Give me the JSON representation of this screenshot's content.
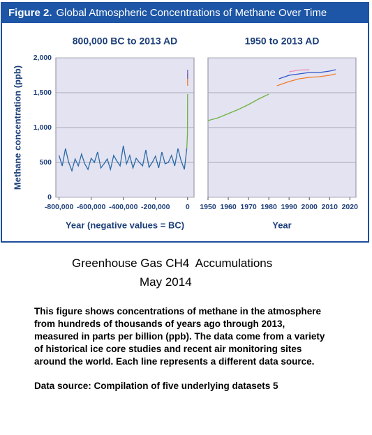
{
  "figure_label": "Figure 2.",
  "figure_title": "Global Atmospheric Concentrations of Methane Over Time",
  "chart_data": [
    {
      "type": "line",
      "title": "800,000 BC to 2013 AD",
      "y_label": "Methane concentration (ppb)",
      "x_label": "Year (negative values = BC)",
      "xlim": [
        -820000,
        40000
      ],
      "ylim": [
        0,
        2000
      ],
      "xticks": [
        {
          "value": -800000,
          "label": "-800,000"
        },
        {
          "value": -600000,
          "label": "-600,000"
        },
        {
          "value": -400000,
          "label": "-400,000"
        },
        {
          "value": -200000,
          "label": "-200,000"
        },
        0
      ],
      "yticks": [
        0,
        500,
        {
          "value": 1000,
          "label": "1,000"
        },
        {
          "value": 1500,
          "label": "1,500"
        },
        {
          "value": 2000,
          "label": "2,000"
        }
      ],
      "grid": true,
      "series": [
        {
          "color": "#2a6aa6",
          "x": [
            -800000,
            -780000,
            -760000,
            -740000,
            -720000,
            -700000,
            -680000,
            -660000,
            -640000,
            -620000,
            -600000,
            -580000,
            -560000,
            -540000,
            -520000,
            -500000,
            -480000,
            -460000,
            -440000,
            -420000,
            -400000,
            -380000,
            -360000,
            -340000,
            -320000,
            -300000,
            -280000,
            -260000,
            -240000,
            -220000,
            -200000,
            -180000,
            -160000,
            -140000,
            -120000,
            -100000,
            -80000,
            -60000,
            -40000,
            -20000,
            -5000
          ],
          "values": [
            600,
            450,
            700,
            500,
            380,
            550,
            450,
            620,
            480,
            400,
            560,
            500,
            650,
            420,
            480,
            550,
            400,
            600,
            520,
            450,
            740,
            480,
            600,
            420,
            560,
            500,
            450,
            680,
            430,
            500,
            590,
            420,
            650,
            480,
            500,
            600,
            450,
            700,
            520,
            400,
            700
          ]
        },
        {
          "color": "#6cb33e",
          "x": [
            -5000,
            -1000,
            0
          ],
          "values": [
            700,
            900,
            1480
          ]
        },
        {
          "color": "#f07c2a",
          "x": [
            0,
            0
          ],
          "values": [
            1600,
            1770
          ]
        },
        {
          "color": "#6a5fc1",
          "x": [
            0,
            0
          ],
          "values": [
            1700,
            1830
          ]
        }
      ]
    },
    {
      "type": "line",
      "title": "1950 to 2013 AD",
      "x_label": "Year",
      "xlim": [
        1950,
        2023
      ],
      "ylim": [
        0,
        2000
      ],
      "xticks": [
        1950,
        1960,
        1970,
        1980,
        1990,
        2000,
        2010,
        2020
      ],
      "yticks": [
        0,
        500,
        1000,
        1500,
        2000
      ],
      "grid": true,
      "series": [
        {
          "color": "#6cb33e",
          "x": [
            1950,
            1955,
            1960,
            1965,
            1970,
            1975,
            1980
          ],
          "values": [
            1100,
            1140,
            1200,
            1260,
            1330,
            1410,
            1480
          ]
        },
        {
          "color": "#f07c2a",
          "x": [
            1984,
            1990,
            1995,
            2000,
            2005,
            2010,
            2013
          ],
          "values": [
            1600,
            1660,
            1700,
            1720,
            1730,
            1750,
            1770
          ]
        },
        {
          "color": "#2f55c4",
          "x": [
            1985,
            1990,
            1995,
            2000,
            2005,
            2010,
            2013
          ],
          "values": [
            1700,
            1750,
            1770,
            1790,
            1790,
            1810,
            1830
          ]
        },
        {
          "color": "#f08cb0",
          "x": [
            1990,
            1995,
            2000
          ],
          "values": [
            1800,
            1825,
            1830
          ]
        }
      ]
    }
  ],
  "caption": "Greenhouse Gas CH4  Accumulations",
  "date": "May 2014",
  "description": [
    "This figure shows concentrations of methane in the atmosphere",
    "from hundreds of thousands of years ago through 2013,",
    "measured in parts per billion (ppb). The data come from a variety",
    "of historical ice core studies and recent air monitoring sites",
    "around the world. Each line represents a different data source."
  ],
  "source": "Data source: Compilation of five underlying datasets 5"
}
